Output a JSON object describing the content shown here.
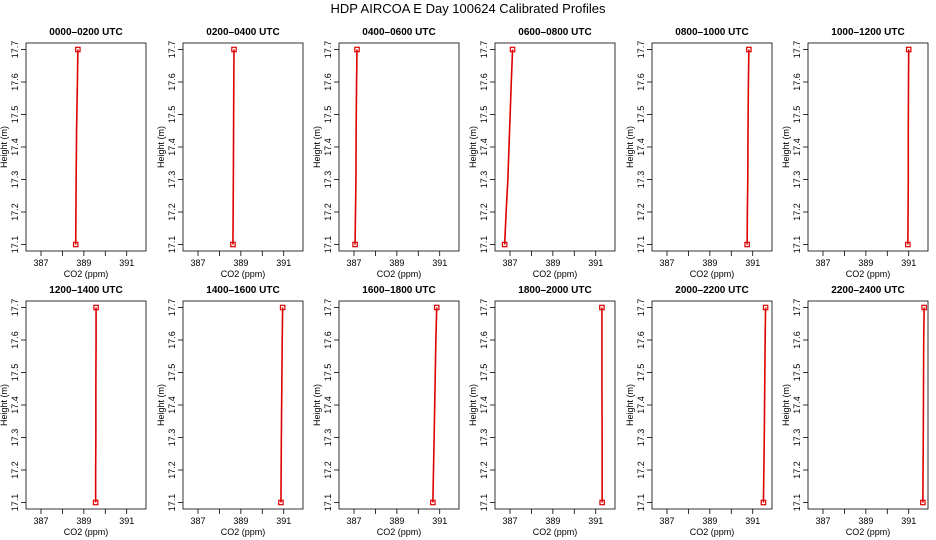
{
  "figure": {
    "title": "HDP AIRCOA E  Day 100624  Calibrated Profiles"
  },
  "colors": {
    "profile": "#dd0000",
    "axis": "#000000"
  },
  "chart_data": [
    {
      "type": "line",
      "title": "0000–0200 UTC",
      "xlabel": "CO2 (ppm)",
      "ylabel": "Height (m)",
      "xlim": [
        386.3,
        391.9
      ],
      "ylim": [
        17.08,
        17.72
      ],
      "xticks": [
        387,
        389,
        391
      ],
      "yticks": [
        17.1,
        17.2,
        17.3,
        17.4,
        17.5,
        17.6,
        17.7
      ],
      "series": [
        {
          "x": [
            388.62,
            388.63,
            388.64,
            388.66,
            388.7,
            388.72
          ],
          "y": [
            17.1,
            17.2,
            17.3,
            17.45,
            17.6,
            17.7
          ]
        }
      ]
    },
    {
      "type": "line",
      "title": "0200–0400 UTC",
      "xlabel": "CO2 (ppm)",
      "ylabel": "Height (m)",
      "xlim": [
        386.3,
        391.9
      ],
      "ylim": [
        17.08,
        17.72
      ],
      "xticks": [
        387,
        389,
        391
      ],
      "yticks": [
        17.1,
        17.2,
        17.3,
        17.4,
        17.5,
        17.6,
        17.7
      ],
      "series": [
        {
          "x": [
            388.63,
            388.64,
            388.65,
            388.66,
            388.67,
            388.68
          ],
          "y": [
            17.1,
            17.2,
            17.3,
            17.45,
            17.6,
            17.7
          ]
        }
      ]
    },
    {
      "type": "line",
      "title": "0400–0600 UTC",
      "xlabel": "CO2 (ppm)",
      "ylabel": "Height (m)",
      "xlim": [
        386.3,
        391.9
      ],
      "ylim": [
        17.08,
        17.72
      ],
      "xticks": [
        387,
        389,
        391
      ],
      "yticks": [
        17.1,
        17.2,
        17.3,
        17.4,
        17.5,
        17.6,
        17.7
      ],
      "series": [
        {
          "x": [
            387.05,
            387.07,
            387.09,
            387.1,
            387.12,
            387.14
          ],
          "y": [
            17.1,
            17.2,
            17.3,
            17.45,
            17.6,
            17.7
          ]
        }
      ]
    },
    {
      "type": "line",
      "title": "0600–0800 UTC",
      "xlabel": "CO2 (ppm)",
      "ylabel": "Height (m)",
      "xlim": [
        386.3,
        391.9
      ],
      "ylim": [
        17.08,
        17.72
      ],
      "xticks": [
        387,
        389,
        391
      ],
      "yticks": [
        17.1,
        17.2,
        17.3,
        17.4,
        17.5,
        17.6,
        17.7
      ],
      "series": [
        {
          "x": [
            386.75,
            386.82,
            386.9,
            386.98,
            387.06,
            387.12
          ],
          "y": [
            17.1,
            17.2,
            17.3,
            17.45,
            17.6,
            17.7
          ]
        }
      ]
    },
    {
      "type": "line",
      "title": "0800–1000 UTC",
      "xlabel": "CO2 (ppm)",
      "ylabel": "Height (m)",
      "xlim": [
        386.3,
        391.9
      ],
      "ylim": [
        17.08,
        17.72
      ],
      "xticks": [
        387,
        389,
        391
      ],
      "yticks": [
        17.1,
        17.2,
        17.3,
        17.4,
        17.5,
        17.6,
        17.7
      ],
      "series": [
        {
          "x": [
            390.74,
            390.75,
            390.77,
            390.78,
            390.8,
            390.82
          ],
          "y": [
            17.1,
            17.2,
            17.3,
            17.45,
            17.6,
            17.7
          ]
        }
      ]
    },
    {
      "type": "line",
      "title": "1000–1200 UTC",
      "xlabel": "CO2 (ppm)",
      "ylabel": "Height (m)",
      "xlim": [
        386.3,
        391.9
      ],
      "ylim": [
        17.08,
        17.72
      ],
      "xticks": [
        387,
        389,
        391
      ],
      "yticks": [
        17.1,
        17.2,
        17.3,
        17.4,
        17.5,
        17.6,
        17.7
      ],
      "series": [
        {
          "x": [
            390.96,
            390.97,
            390.98,
            390.98,
            390.99,
            391.0
          ],
          "y": [
            17.1,
            17.2,
            17.3,
            17.45,
            17.6,
            17.7
          ]
        }
      ]
    },
    {
      "type": "line",
      "title": "1200–1400 UTC",
      "xlabel": "CO2 (ppm)",
      "ylabel": "Height (m)",
      "xlim": [
        386.3,
        391.9
      ],
      "ylim": [
        17.08,
        17.72
      ],
      "xticks": [
        387,
        389,
        391
      ],
      "yticks": [
        17.1,
        17.2,
        17.3,
        17.4,
        17.5,
        17.6,
        17.7
      ],
      "series": [
        {
          "x": [
            389.55,
            389.55,
            389.56,
            389.56,
            389.57,
            389.57
          ],
          "y": [
            17.1,
            17.2,
            17.3,
            17.45,
            17.6,
            17.7
          ]
        }
      ]
    },
    {
      "type": "line",
      "title": "1400–1600 UTC",
      "xlabel": "CO2 (ppm)",
      "ylabel": "Height (m)",
      "xlim": [
        386.3,
        391.9
      ],
      "ylim": [
        17.08,
        17.72
      ],
      "xticks": [
        387,
        389,
        391
      ],
      "yticks": [
        17.1,
        17.2,
        17.3,
        17.4,
        17.5,
        17.6,
        17.7
      ],
      "series": [
        {
          "x": [
            390.87,
            390.88,
            390.89,
            390.91,
            390.93,
            390.95
          ],
          "y": [
            17.1,
            17.2,
            17.3,
            17.45,
            17.6,
            17.7
          ]
        }
      ]
    },
    {
      "type": "line",
      "title": "1600–1800 UTC",
      "xlabel": "CO2 (ppm)",
      "ylabel": "Height (m)",
      "xlim": [
        386.3,
        391.9
      ],
      "ylim": [
        17.08,
        17.72
      ],
      "xticks": [
        387,
        389,
        391
      ],
      "yticks": [
        17.1,
        17.2,
        17.3,
        17.4,
        17.5,
        17.6,
        17.7
      ],
      "series": [
        {
          "x": [
            390.68,
            390.71,
            390.74,
            390.78,
            390.82,
            390.86
          ],
          "y": [
            17.1,
            17.2,
            17.3,
            17.45,
            17.6,
            17.7
          ]
        }
      ]
    },
    {
      "type": "line",
      "title": "1800–2000 UTC",
      "xlabel": "CO2 (ppm)",
      "ylabel": "Height (m)",
      "xlim": [
        386.3,
        391.9
      ],
      "ylim": [
        17.08,
        17.72
      ],
      "xticks": [
        387,
        389,
        391
      ],
      "yticks": [
        17.1,
        17.2,
        17.3,
        17.4,
        17.5,
        17.6,
        17.7
      ],
      "series": [
        {
          "x": [
            391.3,
            391.3,
            391.3,
            391.29,
            391.29,
            391.29
          ],
          "y": [
            17.1,
            17.2,
            17.3,
            17.45,
            17.6,
            17.7
          ]
        }
      ]
    },
    {
      "type": "line",
      "title": "2000–2200 UTC",
      "xlabel": "CO2 (ppm)",
      "ylabel": "Height (m)",
      "xlim": [
        386.3,
        391.9
      ],
      "ylim": [
        17.08,
        17.72
      ],
      "xticks": [
        387,
        389,
        391
      ],
      "yticks": [
        17.1,
        17.2,
        17.3,
        17.4,
        17.5,
        17.6,
        17.7
      ],
      "series": [
        {
          "x": [
            391.5,
            391.52,
            391.54,
            391.56,
            391.58,
            391.6
          ],
          "y": [
            17.1,
            17.2,
            17.3,
            17.45,
            17.6,
            17.7
          ]
        }
      ]
    },
    {
      "type": "line",
      "title": "2200–2400 UTC",
      "xlabel": "CO2 (ppm)",
      "ylabel": "Height (m)",
      "xlim": [
        386.3,
        391.9
      ],
      "ylim": [
        17.08,
        17.72
      ],
      "xticks": [
        387,
        389,
        391
      ],
      "yticks": [
        17.1,
        17.2,
        17.3,
        17.4,
        17.5,
        17.6,
        17.7
      ],
      "series": [
        {
          "x": [
            391.66,
            391.67,
            391.68,
            391.69,
            391.7,
            391.72
          ],
          "y": [
            17.1,
            17.2,
            17.3,
            17.45,
            17.6,
            17.7
          ]
        }
      ]
    }
  ]
}
